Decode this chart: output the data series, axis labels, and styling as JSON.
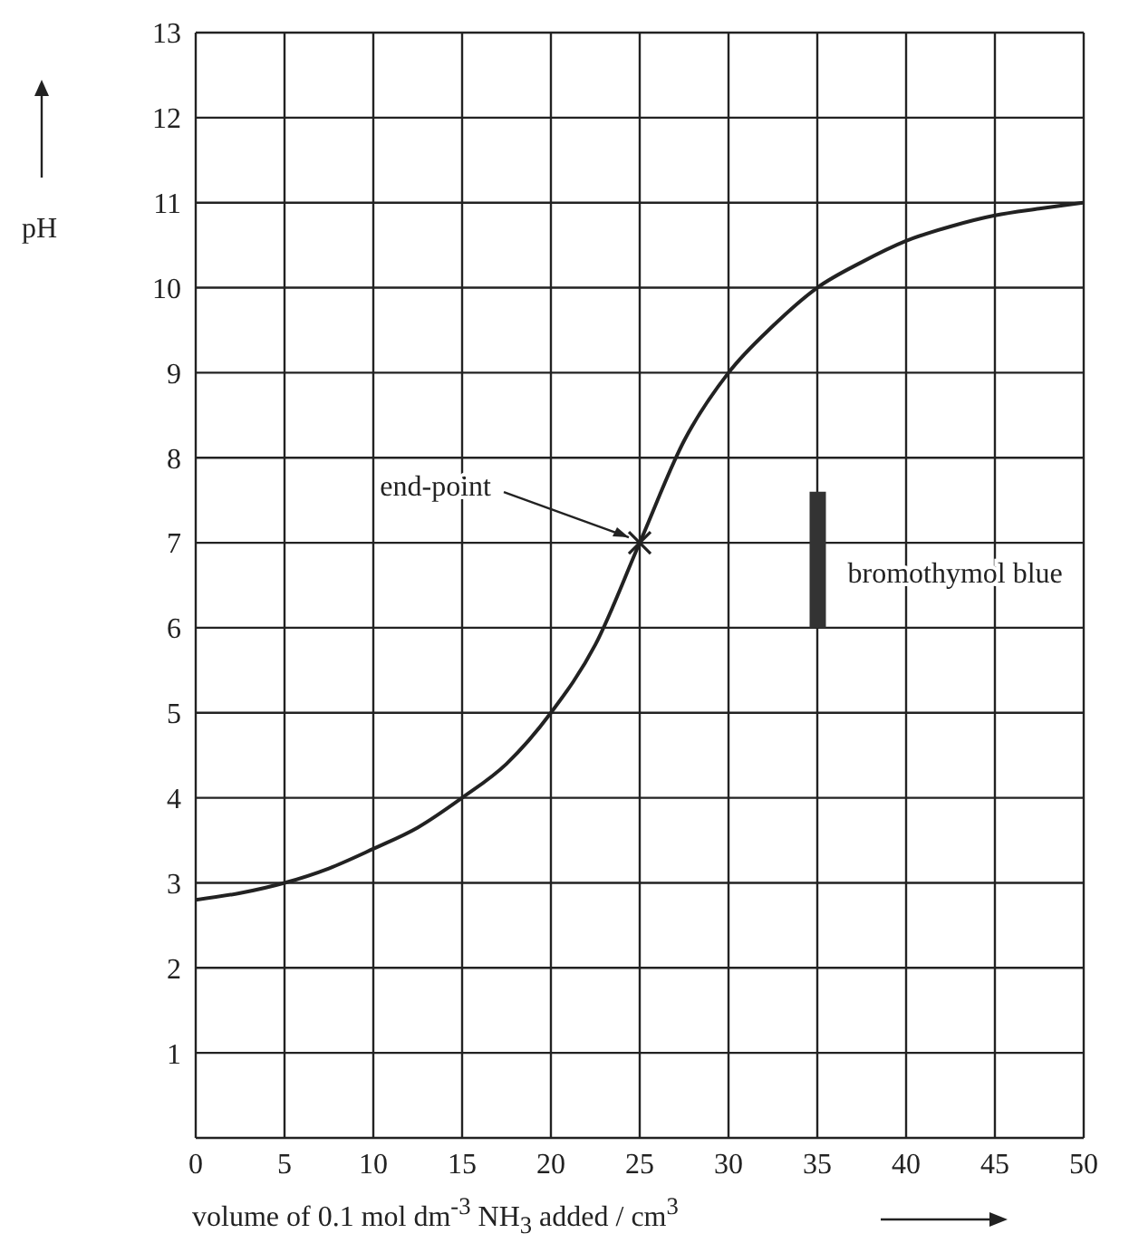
{
  "chart_data": {
    "type": "line",
    "xlabel": "volume of 0.1 mol dm$^{-3}$ NH$_{3}$ added / cm$^{3}$",
    "ylabel": "pH",
    "xlim": [
      0,
      50
    ],
    "xticks": [
      0,
      5,
      10,
      15,
      20,
      25,
      30,
      35,
      40,
      45,
      50
    ],
    "ylim": [
      0,
      13
    ],
    "yticks": [
      {
        "value": 0,
        "label": null
      },
      1,
      2,
      3,
      4,
      5,
      6,
      7,
      8,
      9,
      10,
      11,
      12,
      13
    ],
    "grid": true,
    "legend": false,
    "line_style": "solid",
    "series": [
      {
        "color": "#222222",
        "x": [
          0,
          2.5,
          5,
          7.5,
          10,
          12.5,
          15,
          17.5,
          20,
          22.5,
          25,
          27.5,
          30,
          32.5,
          35,
          37.5,
          40,
          42.5,
          45,
          47.5,
          50
        ],
        "values": [
          2.8,
          2.88,
          3.0,
          3.17,
          3.4,
          3.65,
          4.0,
          4.4,
          5.0,
          5.8,
          7.0,
          8.2,
          9.0,
          9.55,
          10.0,
          10.3,
          10.55,
          10.72,
          10.85,
          10.93,
          11.0
        ]
      },
      {
        "type": "scatter",
        "color": "#222222",
        "marker": "cross",
        "x": [
          25
        ],
        "values": [
          7
        ]
      },
      {
        "type": "bar",
        "name": "bromothymol blue",
        "color": "#333333",
        "x": [
          35
        ],
        "base": [
          6.0
        ],
        "values": [
          1.6
        ]
      }
    ],
    "annotations": [
      {
        "text": "end-point",
        "x": 25,
        "y": 7
      }
    ]
  }
}
